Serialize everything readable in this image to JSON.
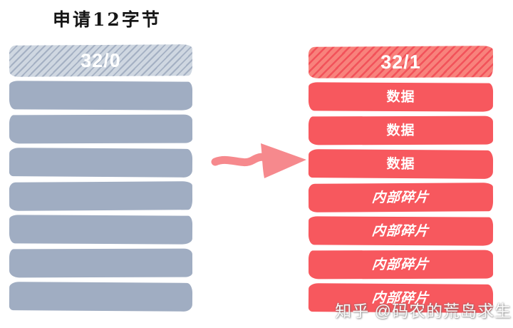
{
  "title": "申请12字节",
  "left_stack": {
    "header_label": "32/0",
    "blocks": [
      "",
      "",
      "",
      "",
      "",
      "",
      ""
    ]
  },
  "right_stack": {
    "header_label": "32/1",
    "blocks": [
      {
        "label": "数据",
        "emphasis": "normal"
      },
      {
        "label": "数据",
        "emphasis": "normal"
      },
      {
        "label": "数据",
        "emphasis": "normal"
      },
      {
        "label": "内部碎片",
        "emphasis": "italic"
      },
      {
        "label": "内部碎片",
        "emphasis": "italic"
      },
      {
        "label": "内部碎片",
        "emphasis": "italic"
      },
      {
        "label": "内部碎片",
        "emphasis": "italic"
      }
    ]
  },
  "icons": {
    "arrow": "right-arrow"
  },
  "watermark": {
    "text": "知乎 @码农的荒岛求生"
  },
  "colors": {
    "left_solid": "#a0adc2",
    "left_hatch_bg": "#cfd7e1",
    "left_hatch_stripe": "#a4b0c3",
    "right_solid": "#f7585e",
    "right_hatch_bg": "#f8827c",
    "right_hatch_stripe": "#f2525a",
    "arrow": "#f6898d",
    "title_text": "#161616",
    "block_text": "#ffffff"
  }
}
